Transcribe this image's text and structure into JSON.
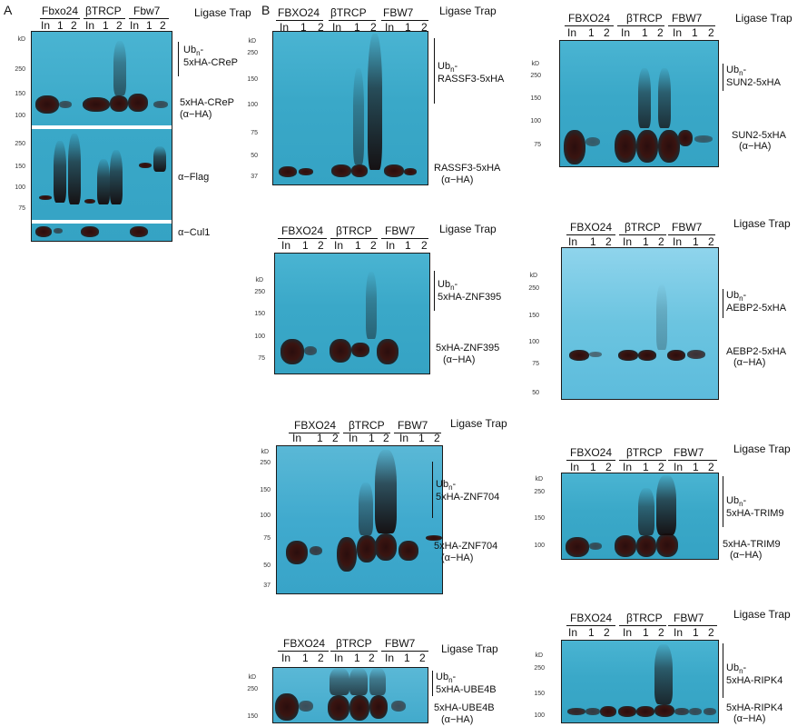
{
  "panel_labels": {
    "a": "A",
    "b": "B"
  },
  "ligase_trap": "Ligase Trap",
  "kd": "kD",
  "lanes": {
    "in": "In",
    "l1": "1",
    "l2": "2"
  },
  "panelA": {
    "groups": [
      "Fbxo24",
      "βTRCP",
      "Fbw7"
    ],
    "ubn": "Ub",
    "ubn_sub": "n",
    "ubn_dash": "-",
    "ubn_target": "5xHA-CReP",
    "band_label": "5xHA-CReP",
    "band_ab": "(α−HA)",
    "flag": "α−Flag",
    "cul1": "α−Cul1",
    "mw_top": [
      "250",
      "150",
      "100"
    ],
    "mw_mid": [
      "250",
      "150",
      "100",
      "75"
    ]
  },
  "groups_upper": [
    "FBXO24",
    "βTRCP",
    "FBW7"
  ],
  "blots": [
    {
      "id": "rassf3",
      "ubn_target": "RASSF3-5xHA",
      "band_label": "RASSF3-5xHA",
      "band_ab": "(α−HA)",
      "mw": [
        "250",
        "150",
        "100",
        "75",
        "50",
        "37"
      ]
    },
    {
      "id": "sun2",
      "ubn_target": "SUN2-5xHA",
      "band_label": "SUN2-5xHA",
      "band_ab": "(α−HA)",
      "mw": [
        "250",
        "150",
        "100",
        "75"
      ]
    },
    {
      "id": "znf395",
      "ubn_target": "5xHA-ZNF395",
      "band_label": "5xHA-ZNF395",
      "band_ab": "(α−HA)",
      "mw": [
        "250",
        "150",
        "100",
        "75"
      ]
    },
    {
      "id": "aebp2",
      "ubn_target": "AEBP2-5xHA",
      "band_label": "AEBP2-5xHA",
      "band_ab": "(α−HA)",
      "mw": [
        "250",
        "150",
        "100",
        "75",
        "50"
      ]
    },
    {
      "id": "znf704",
      "ubn_target": "5xHA-ZNF704",
      "band_label": "5xHA-ZNF704",
      "band_ab": "(α−HA)",
      "mw": [
        "250",
        "150",
        "100",
        "75",
        "50",
        "37"
      ]
    },
    {
      "id": "trim9",
      "ubn_target": "5xHA-TRIM9",
      "band_label": "5xHA-TRIM9",
      "band_ab": "(α−HA)",
      "mw": [
        "250",
        "150",
        "100"
      ]
    },
    {
      "id": "ube4b",
      "ubn_target": "5xHA-UBE4B",
      "band_label": "5xHA-UBE4B",
      "band_ab": "(α−HA)",
      "mw": [
        "250",
        "150"
      ]
    },
    {
      "id": "ripk4",
      "ubn_target": "5xHA-RIPK4",
      "band_label": "5xHA-RIPK4",
      "band_ab": "(α−HA)",
      "mw": [
        "250",
        "150",
        "100"
      ]
    }
  ]
}
